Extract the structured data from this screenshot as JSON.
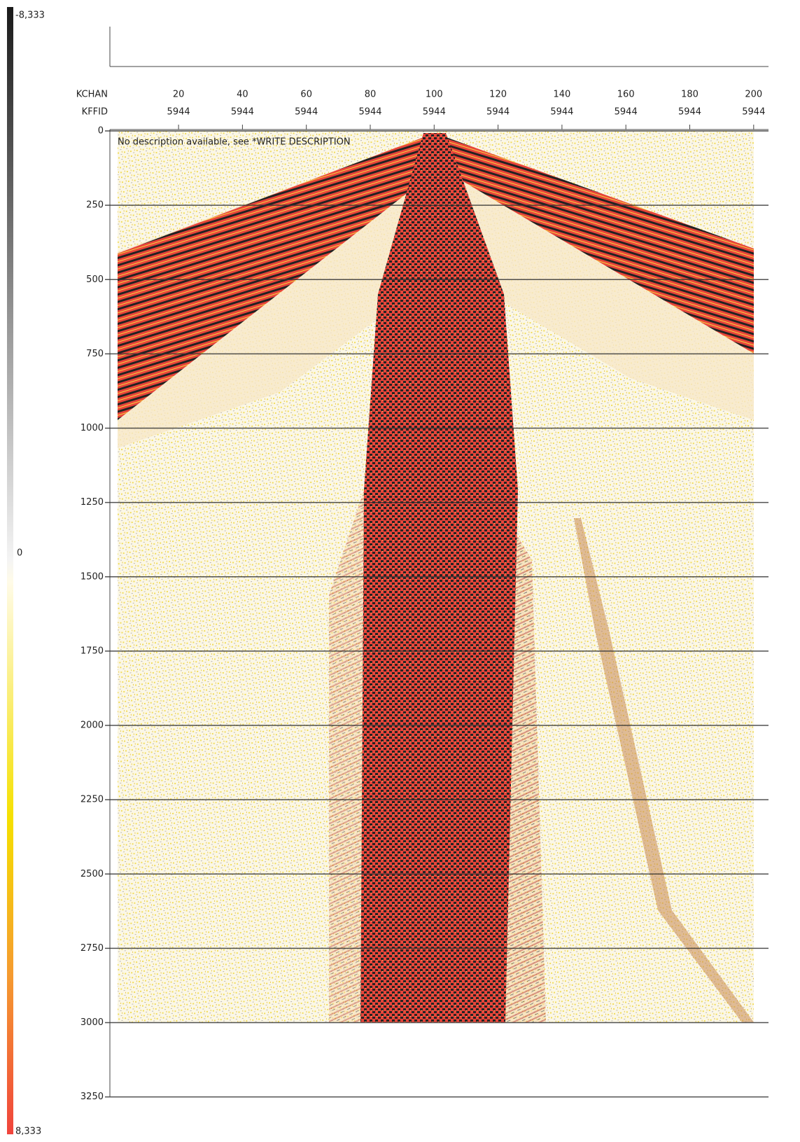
{
  "colorbar": {
    "top_label": "-8,333",
    "mid_label": "0",
    "bottom_label": "8,333"
  },
  "header": {
    "row_labels": [
      "KCHAN",
      "KFFID"
    ],
    "kchan": [
      20,
      40,
      60,
      80,
      100,
      120,
      140,
      160,
      180,
      200
    ],
    "kffid": [
      5944,
      5944,
      5944,
      5944,
      5944,
      5944,
      5944,
      5944,
      5944,
      5944
    ]
  },
  "description": "No description available, see *WRITE DESCRIPTION",
  "time_axis": {
    "ticks": [
      0,
      250,
      500,
      750,
      1000,
      1250,
      1500,
      1750,
      2000,
      2250,
      2500,
      2750,
      3000,
      3250
    ]
  }
}
